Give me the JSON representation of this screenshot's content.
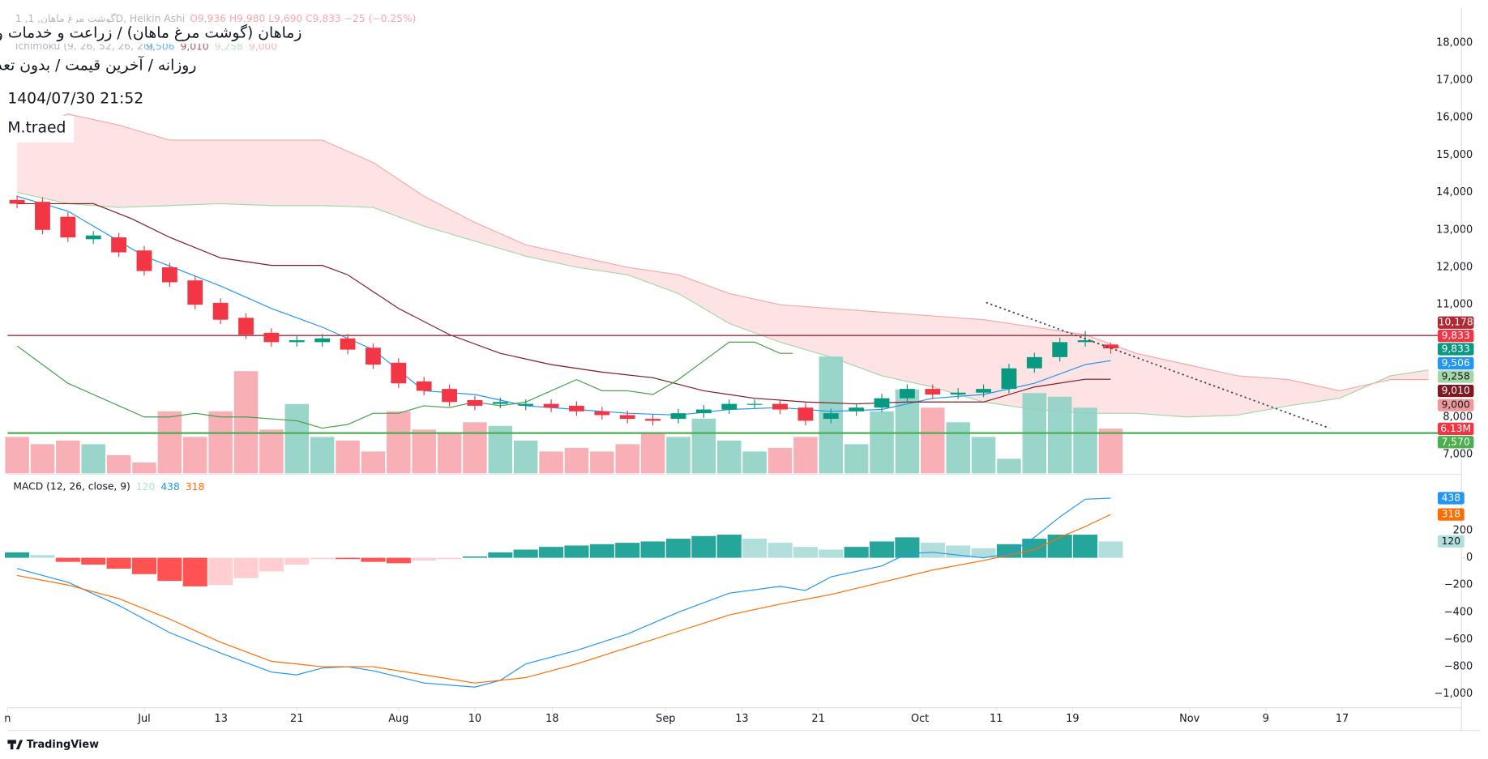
{
  "chart_data": {
    "type": "candlestick",
    "title": "زماهان (گوشت مرغ ماهان) / زراعت و خدمات وابسته",
    "subtitle": "روزانه / آخرین قیمت / بدون تعدیل",
    "timestamp": "1404/07/30 21:52",
    "author": "M.traed",
    "legend_symbol": "1 ,گوشت مرغ ماهان, 1D, Heikin Ashi",
    "legend_ohlc": "O9,936 H9,980 L9,690 C9,833 −25 (−0.25%)",
    "ichimoku_label": "Ichimoku (9, 26, 52, 26, 26)",
    "watermark": "TradingView",
    "xlim": [
      -0.373,
      56.79
    ],
    "xticks": [
      {
        "value": -0.373,
        "label": "n"
      },
      {
        "value": 5.0,
        "label": "Jul"
      },
      {
        "value": 8.02,
        "label": "13"
      },
      {
        "value": 11.0,
        "label": "21"
      },
      {
        "value": 15.0,
        "label": "Aug"
      },
      {
        "value": 18.0,
        "label": "10"
      },
      {
        "value": 21.04,
        "label": "18"
      },
      {
        "value": 25.5,
        "label": "Sep"
      },
      {
        "value": 28.5,
        "label": "13"
      },
      {
        "value": 31.5,
        "label": "21"
      },
      {
        "value": 35.5,
        "label": "Oct"
      },
      {
        "value": 38.5,
        "label": "11"
      },
      {
        "value": 41.5,
        "label": "19"
      },
      {
        "value": 46.1,
        "label": "Nov"
      },
      {
        "value": 49.1,
        "label": "9"
      },
      {
        "value": 52.1,
        "label": "17"
      }
    ],
    "ylim": [
      6492,
      18938
    ],
    "yticks": [
      {
        "value": 18000,
        "label": "18,000"
      },
      {
        "value": 17000,
        "label": "17,000"
      },
      {
        "value": 16000,
        "label": "16,000"
      },
      {
        "value": 15000,
        "label": "15,000"
      },
      {
        "value": 14000,
        "label": "14,000"
      },
      {
        "value": 13000,
        "label": "13,000"
      },
      {
        "value": 12000,
        "label": "12,000"
      },
      {
        "value": 11000,
        "label": "11,000"
      },
      {
        "value": 8000,
        "label": "8,000"
      },
      {
        "value": 7000,
        "label": "7,000"
      }
    ],
    "up_color": "#089981",
    "down_color": "#f23645",
    "open": [
      13800,
      13750,
      13350,
      12750,
      12800,
      12450,
      12000,
      11650,
      11050,
      10650,
      10250,
      10000,
      10000,
      10100,
      9850,
      9450,
      8950,
      8750,
      8450,
      8350,
      8300,
      8350,
      8300,
      8150,
      8050,
      7950,
      7950,
      8100,
      8200,
      8350,
      8350,
      8250,
      7950,
      8150,
      8250,
      8500,
      8750,
      8600,
      8650,
      8750,
      9300,
      9600,
      10000,
      9936
    ],
    "high": [
      13920,
      13870,
      13470,
      12970,
      12920,
      12570,
      12120,
      11770,
      11170,
      10770,
      10370,
      10170,
      10220,
      10220,
      9970,
      9570,
      9070,
      8870,
      8570,
      8520,
      8470,
      8470,
      8420,
      8270,
      8170,
      8070,
      8220,
      8320,
      8470,
      8470,
      8470,
      8370,
      8220,
      8370,
      8620,
      8870,
      8870,
      8770,
      8870,
      9420,
      9720,
      10120,
      10300,
      9980
    ],
    "low": [
      13580,
      12880,
      12680,
      12630,
      12280,
      11780,
      11480,
      10880,
      10480,
      10080,
      9880,
      9880,
      9880,
      9680,
      9280,
      8780,
      8580,
      8280,
      8180,
      8230,
      8180,
      8130,
      8030,
      7930,
      7830,
      7780,
      7830,
      7980,
      8080,
      8230,
      8080,
      7780,
      7830,
      8030,
      8130,
      8380,
      8480,
      8480,
      8530,
      8630,
      9180,
      9480,
      9880,
      9690
    ],
    "close": [
      13700,
      13000,
      12800,
      12850,
      12400,
      11900,
      11600,
      11000,
      10600,
      10200,
      10000,
      10050,
      10100,
      9800,
      9400,
      8900,
      8700,
      8400,
      8300,
      8400,
      8350,
      8250,
      8150,
      8050,
      7950,
      7900,
      8100,
      8200,
      8350,
      8350,
      8200,
      7900,
      8100,
      8250,
      8500,
      8750,
      8600,
      8650,
      8750,
      9300,
      9600,
      10000,
      10050,
      9833
    ],
    "volume": [
      5,
      4,
      4.5,
      4,
      2.5,
      1.5,
      8.5,
      5,
      8.5,
      14,
      6,
      9.5,
      5,
      4.5,
      3,
      8.5,
      6,
      5.5,
      7,
      6.5,
      4.5,
      3,
      3.5,
      3,
      4,
      5.5,
      5,
      7.5,
      4.5,
      3,
      3.5,
      5,
      16,
      4,
      8.5,
      11.5,
      9,
      7,
      5,
      2,
      11,
      10.5,
      9,
      6.13
    ],
    "volume_lim": [
      0,
      20
    ],
    "volume_up_color": "#8fd0c4",
    "volume_down_color": "#f7a6ae",
    "cloud": {
      "color": "#fcdcdc",
      "x": [
        0,
        2,
        4,
        6,
        8,
        10,
        12,
        14,
        16,
        18,
        20,
        22,
        24,
        26,
        28,
        30,
        32,
        34,
        36,
        38,
        40,
        42,
        44,
        46,
        48,
        50,
        52,
        54,
        55.5
      ],
      "span_a": [
        14000,
        13700,
        13600,
        13650,
        13700,
        13650,
        13650,
        13600,
        13100,
        12700,
        12300,
        12000,
        11800,
        11300,
        10500,
        10000,
        9600,
        9100,
        8800,
        8400,
        8200,
        8100,
        8100,
        8000,
        8050,
        8300,
        8500,
        9100,
        9258
      ],
      "span_b": [
        15500,
        16100,
        15800,
        15400,
        15400,
        15400,
        15400,
        14800,
        13900,
        13200,
        12600,
        12300,
        12000,
        11800,
        11300,
        11000,
        10900,
        10800,
        10700,
        10600,
        10400,
        10200,
        9700,
        9400,
        9100,
        9000,
        8700,
        9000,
        9000
      ],
      "span_a_color": "#a5d6a7",
      "span_b_color": "#f4a9a9"
    },
    "lines": [
      {
        "color": "#2196f3",
        "x": [
          0,
          2,
          5,
          8,
          10,
          12,
          14,
          16,
          18,
          20,
          22,
          24,
          26,
          28,
          30,
          32,
          34,
          36,
          38,
          40,
          42,
          43
        ],
        "values": [
          13900,
          13500,
          12300,
          11500,
          10900,
          10400,
          9800,
          8700,
          8600,
          8300,
          8200,
          8100,
          8050,
          8200,
          8250,
          8150,
          8200,
          8500,
          8600,
          8900,
          9400,
          9506
        ]
      },
      {
        "color": "#801922",
        "x": [
          0,
          3,
          4.5,
          6,
          8,
          10,
          12,
          13,
          15,
          17,
          19,
          21,
          23,
          25,
          27,
          29,
          31,
          33,
          35,
          38,
          40,
          42,
          43
        ],
        "values": [
          13700,
          13700,
          13300,
          12800,
          12250,
          12050,
          12050,
          11800,
          10900,
          10200,
          9700,
          9400,
          9200,
          9050,
          8700,
          8500,
          8400,
          8350,
          8400,
          8400,
          8800,
          9010,
          9010
        ]
      },
      {
        "color": "#43a047",
        "x": [
          0,
          1,
          2,
          3,
          4,
          5,
          6,
          7,
          8,
          9,
          10,
          11,
          12,
          13,
          14,
          15,
          16,
          17,
          18,
          19,
          20,
          21,
          22,
          23,
          24,
          25,
          26,
          27,
          28,
          29,
          30,
          30.5
        ],
        "values": [
          9900,
          9400,
          8900,
          8600,
          8300,
          8000,
          8000,
          8100,
          8000,
          8000,
          7950,
          7900,
          7700,
          7800,
          8100,
          8100,
          8300,
          8250,
          8400,
          8300,
          8400,
          8700,
          9000,
          8700,
          8700,
          8600,
          9000,
          9500,
          10000,
          10000,
          9700,
          9700
        ]
      }
    ],
    "hlines": [
      {
        "value": 10178,
        "color": "#a52a3a"
      },
      {
        "value": 7570,
        "color": "#4caf50"
      }
    ],
    "trendline": {
      "color": "#434651",
      "x": [
        38.1,
        51.6
      ],
      "values": [
        11060,
        7700
      ]
    },
    "price_boxes": [
      {
        "value": 10178,
        "label": "10,178",
        "color": "#b22833"
      },
      {
        "value": 9833,
        "label": "9,833",
        "color": "#f23645"
      },
      {
        "value": 9833,
        "label": "9,833",
        "color": "#089981"
      },
      {
        "value": 9506,
        "label": "9,506",
        "color": "#2196f3"
      },
      {
        "value": 9258,
        "label": "9,258",
        "color": "#a5d6a7"
      },
      {
        "value": 9010,
        "label": "9,010",
        "color": "#801922"
      },
      {
        "value": 9000,
        "label": "9,000",
        "color": "#ef9a9a"
      },
      {
        "value": 6.13,
        "label": "6.13M",
        "color": "#f23645"
      },
      {
        "value": 7570,
        "label": "7,570",
        "color": "#4caf50"
      }
    ],
    "macd": {
      "label": "MACD (12, 26, close, 9)",
      "ylim": [
        -1094,
        578
      ],
      "yticks": [
        200,
        0,
        {
          "value": -200,
          "label": "−200"
        },
        {
          "value": -400,
          "label": "−400"
        },
        {
          "value": -600,
          "label": "−600"
        },
        {
          "value": -800,
          "label": "−800"
        },
        {
          "value": -1000,
          "label": "−1,000"
        }
      ],
      "histogram": [
        40,
        20,
        -30,
        -50,
        -80,
        -120,
        -170,
        -210,
        -200,
        -150,
        -100,
        -50,
        -10,
        -10,
        -30,
        -40,
        -20,
        -10,
        10,
        40,
        60,
        80,
        90,
        100,
        110,
        120,
        140,
        160,
        170,
        140,
        110,
        80,
        60,
        80,
        120,
        150,
        110,
        90,
        70,
        100,
        140,
        170,
        170,
        120
      ],
      "hist_colors": {
        "up_rise": "#26a69a",
        "up_fall": "#b2dfdb",
        "down_fall": "#ff5252",
        "down_rise": "#ffcdd2"
      },
      "lines": [
        {
          "color": "#2196f3",
          "x": [
            0,
            2,
            4,
            6,
            8,
            10,
            11,
            12,
            13,
            14,
            16,
            18,
            19,
            20,
            22,
            24,
            26,
            28,
            30,
            31,
            32,
            34,
            35,
            36,
            38,
            39,
            40,
            41,
            42,
            43
          ],
          "values": [
            -80,
            -180,
            -350,
            -550,
            -700,
            -840,
            -860,
            -810,
            -800,
            -830,
            -920,
            -950,
            -900,
            -780,
            -680,
            -560,
            -400,
            -260,
            -210,
            -240,
            -140,
            -60,
            30,
            40,
            0,
            30,
            150,
            300,
            430,
            438
          ]
        },
        {
          "color": "#ff6d00",
          "x": [
            0,
            2,
            4,
            6,
            8,
            10,
            12,
            14,
            16,
            18,
            20,
            22,
            24,
            26,
            28,
            30,
            32,
            34,
            36,
            38,
            40,
            41,
            42,
            43
          ],
          "values": [
            -130,
            -200,
            -300,
            -450,
            -620,
            -760,
            -800,
            -800,
            -860,
            -920,
            -880,
            -780,
            -660,
            -540,
            -420,
            -340,
            -270,
            -180,
            -90,
            -20,
            60,
            150,
            230,
            318
          ]
        }
      ],
      "boxes": [
        {
          "value": 438,
          "label": "438",
          "color": "#2196f3"
        },
        {
          "value": 318,
          "label": "318",
          "color": "#ff6d00"
        },
        {
          "value": 120,
          "label": "120",
          "color": "#b2dfdb"
        }
      ]
    }
  }
}
